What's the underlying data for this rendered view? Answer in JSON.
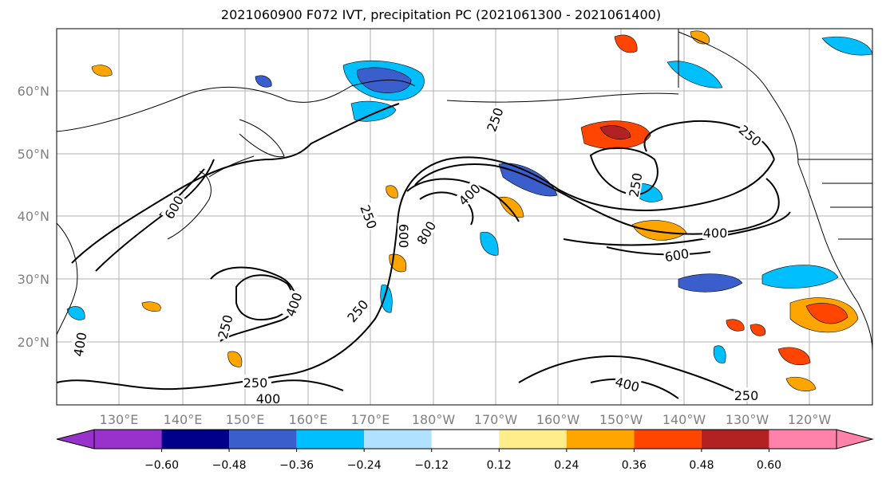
{
  "title": "2021060900 F072 IVT, precipitation PC (2021061300 - 2021061400)",
  "lat_labels": [
    "60°N",
    "50°N",
    "40°N",
    "30°N",
    "20°N"
  ],
  "lon_labels": [
    "130°E",
    "140°E",
    "150°E",
    "160°E",
    "170°E",
    "180°W",
    "170°W",
    "160°W",
    "150°W",
    "140°W",
    "130°W",
    "120°W"
  ],
  "contour_labels": [
    "250",
    "250",
    "250",
    "250",
    "250",
    "250",
    "250",
    "250",
    "400",
    "400",
    "400",
    "400",
    "400",
    "400",
    "600",
    "600",
    "600",
    "800"
  ],
  "colorbar": {
    "colors": [
      "#9932cc",
      "#00008b",
      "#3a5fcd",
      "#00bfff",
      "#b0e2ff",
      "#ffffff",
      "#ffec8b",
      "#ffa500",
      "#ff4500",
      "#b22222",
      "#ff82ab"
    ],
    "tick_labels": [
      "−0.60",
      "−0.48",
      "−0.36",
      "−0.24",
      "−0.12",
      "0.12",
      "0.24",
      "0.36",
      "0.48",
      "0.60"
    ]
  },
  "colors": {
    "land": "#000000",
    "grid": "#b0b0b0",
    "contour": "#000000",
    "axis_tick_label": "#808080"
  }
}
